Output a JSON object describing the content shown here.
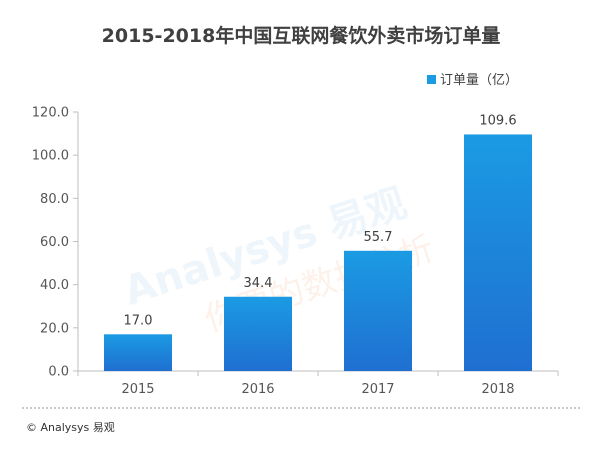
{
  "chart_data": {
    "type": "bar",
    "title": "2015-2018年中国互联网餐饮外卖市场订单量",
    "categories": [
      "2015",
      "2016",
      "2017",
      "2018"
    ],
    "series": [
      {
        "name": "订单量（亿）",
        "values": [
          17.0,
          34.4,
          55.7,
          109.6
        ]
      }
    ],
    "ylim": [
      0,
      120
    ],
    "yticks": [
      "0.0",
      "20.0",
      "40.0",
      "60.0",
      "80.0",
      "100.0",
      "120.0"
    ],
    "data_labels": [
      "17.0",
      "34.4",
      "55.7",
      "109.6"
    ],
    "grid": false,
    "legend_position": "top-right",
    "colors": {
      "bar_top": "#1b9be3",
      "bar_bottom": "#1f6fd1",
      "axis": "#bfbfbf"
    }
  },
  "footer": {
    "copyright": "© Analysys 易观"
  },
  "watermark": {
    "brand": "Analysys 易观",
    "slogan": "你要的数据分析"
  }
}
